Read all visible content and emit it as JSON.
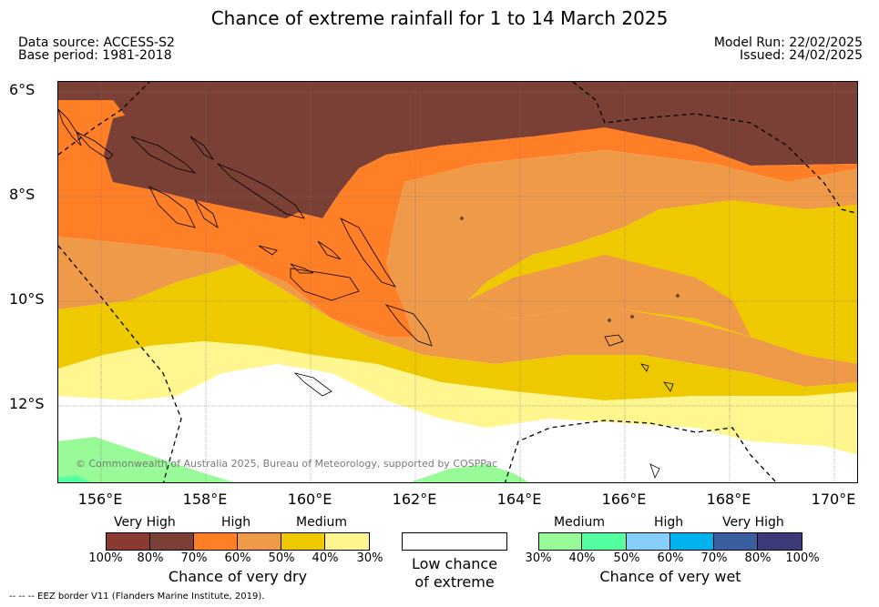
{
  "title": "Chance of extreme rainfall for 1 to 14 March 2025",
  "meta": {
    "data_source": "Data source: ACCESS-S2",
    "base_period": "Base period: 1981-2018",
    "model_run": "Model Run: 22/02/2025",
    "issued": "Issued: 24/02/2025"
  },
  "map": {
    "lat_labels": [
      "6°S",
      "8°S",
      "10°S",
      "12°S"
    ],
    "lon_labels": [
      "156°E",
      "158°E",
      "160°E",
      "162°E",
      "164°E",
      "166°E",
      "168°E",
      "170°E"
    ],
    "copyright": "© Commonwealth of Australia 2025, Bureau of Meteorology, supported by COSPPac",
    "colors": {
      "very_high_dry_dark": "#8b3a32",
      "very_high_dry": "#7a4035",
      "high_dry_dark": "#ff7f27",
      "high_dry": "#ee9a48",
      "medium_dry_dark": "#eec900",
      "medium_dry": "#fff68f",
      "low": "#ffffff",
      "medium_wet_light": "#98fb98",
      "medium_wet": "#54ff9f"
    }
  },
  "legend": {
    "dry": {
      "groups": [
        "Very High",
        "High",
        "Medium"
      ],
      "ticks": [
        "100%",
        "80%",
        "70%",
        "60%",
        "50%",
        "40%",
        "30%"
      ],
      "title": "Chance of very dry",
      "colors": [
        "#8b3a32",
        "#7a4035",
        "#ff7f27",
        "#ee9a48",
        "#eec900",
        "#fff68f"
      ]
    },
    "low": {
      "title_line1": "Low chance",
      "title_line2": "of extreme"
    },
    "wet": {
      "groups": [
        "Medium",
        "High",
        "Very High"
      ],
      "ticks": [
        "30%",
        "40%",
        "50%",
        "60%",
        "70%",
        "80%",
        "100%"
      ],
      "title": "Chance of very wet",
      "colors": [
        "#98fb98",
        "#54ff9f",
        "#87cefa",
        "#00b2ee",
        "#3a5fa0",
        "#3d3a7a"
      ]
    }
  },
  "footer": "-- -- -- EEZ border V11 (Flanders Marine Institute, 2019)."
}
